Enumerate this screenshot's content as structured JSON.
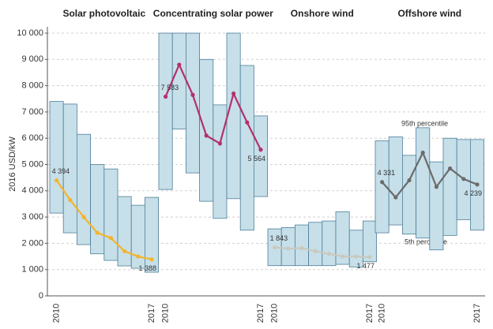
{
  "chart_data": {
    "type": "range-line",
    "y_label": "2016 USD/kW",
    "ylim": [
      0,
      10000
    ],
    "yticks": [
      0,
      {
        "value": 1000,
        "label": "1 000"
      },
      {
        "value": 2000,
        "label": "2 000"
      },
      {
        "value": 3000,
        "label": "3 000"
      },
      {
        "value": 4000,
        "label": "4 000"
      },
      {
        "value": 5000,
        "label": "5 000"
      },
      {
        "value": 6000,
        "label": "6 000"
      },
      {
        "value": 7000,
        "label": "7 000"
      },
      {
        "value": 8000,
        "label": "8 000"
      },
      {
        "value": 9000,
        "label": "9 000"
      },
      {
        "value": 10000,
        "label": "10 000"
      }
    ],
    "grid": true,
    "box_color": "#c6dfe9",
    "box_edge_color": "#4f7f99",
    "panels": [
      {
        "title": "Solar photovoltaic",
        "color": "#f4b42c",
        "categories": [
          "2010",
          null,
          null,
          null,
          null,
          null,
          null,
          "2017"
        ],
        "range_low": [
          3150,
          2400,
          1950,
          1600,
          1350,
          1140,
          1050,
          900
        ],
        "range_high": [
          7400,
          7300,
          6150,
          5000,
          4830,
          3780,
          3450,
          3750
        ],
        "values": [
          4394,
          3650,
          3000,
          2400,
          2200,
          1700,
          1500,
          1388
        ],
        "value_labels": [
          "4 394",
          null,
          null,
          null,
          null,
          null,
          null,
          "1 388"
        ]
      },
      {
        "title": "Concentrating solar power",
        "color": "#b3306c",
        "categories": [
          "2010",
          null,
          null,
          null,
          null,
          null,
          null,
          "2017"
        ],
        "range_low": [
          4050,
          6350,
          4680,
          3600,
          2950,
          3700,
          2500,
          3780
        ],
        "range_high": [
          10000,
          10000,
          10000,
          9000,
          7270,
          10000,
          8770,
          6850
        ],
        "values": [
          7583,
          8800,
          7650,
          6100,
          5800,
          7700,
          6600,
          5564
        ],
        "value_labels": [
          "7 583",
          null,
          null,
          null,
          null,
          null,
          null,
          "5 564"
        ]
      },
      {
        "title": "Onshore wind",
        "color": "#c9c9bf",
        "categories": [
          "2010",
          null,
          null,
          null,
          null,
          null,
          null,
          "2017"
        ],
        "range_low": [
          1150,
          1150,
          1150,
          1150,
          1150,
          1200,
          1100,
          1300
        ],
        "range_high": [
          2550,
          2600,
          2700,
          2800,
          2850,
          3200,
          2500,
          2850
        ],
        "values": [
          1843,
          1800,
          1820,
          1700,
          1600,
          1500,
          1500,
          1477
        ],
        "value_labels": [
          "1 843",
          null,
          null,
          null,
          null,
          null,
          null,
          "1 477"
        ]
      },
      {
        "title": "Offshore wind",
        "color": "#6b6b6b",
        "categories": [
          "2010",
          null,
          null,
          null,
          null,
          null,
          null,
          "2017"
        ],
        "range_low": [
          2400,
          2700,
          2350,
          2200,
          1750,
          2300,
          2900,
          2500
        ],
        "range_high": [
          5900,
          6050,
          5350,
          6400,
          5100,
          6000,
          5950,
          5950
        ],
        "values": [
          4331,
          3750,
          4400,
          5450,
          4150,
          4850,
          4450,
          4239
        ],
        "value_labels": [
          "4 331",
          null,
          null,
          null,
          null,
          null,
          null,
          "4 239"
        ]
      }
    ],
    "annotations": [
      "95th percentile",
      "5th percentile"
    ]
  }
}
